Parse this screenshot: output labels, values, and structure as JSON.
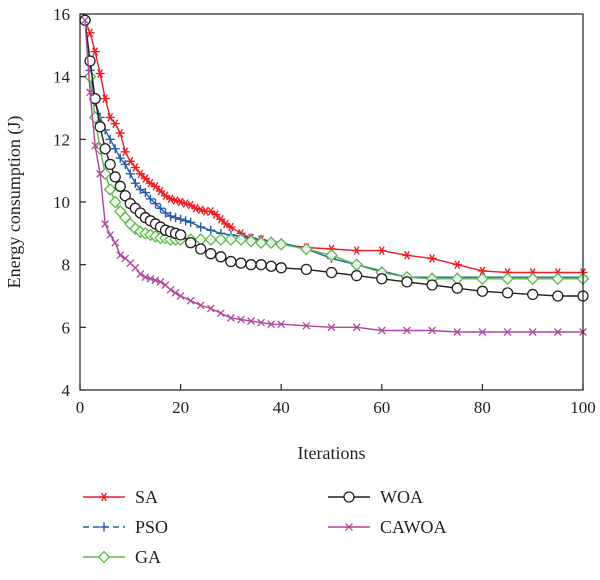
{
  "chart_data": {
    "type": "line",
    "xlabel": "Iterations",
    "ylabel": "Energy consumption (J)",
    "xlim": [
      0,
      100
    ],
    "ylim": [
      4,
      16
    ],
    "xticks": [
      "0",
      "20",
      "40",
      "60",
      "80",
      "100"
    ],
    "yticks": [
      "4",
      "6",
      "8",
      "10",
      "12",
      "14",
      "16"
    ],
    "grid": false,
    "legend_position": "bottom",
    "series": [
      {
        "name": "SA",
        "color": "#ee1c25",
        "marker": "asterisk",
        "x": [
          1,
          2,
          3,
          4,
          5,
          6,
          7,
          8,
          9,
          10,
          11,
          12,
          13,
          14,
          15,
          16,
          17,
          18,
          19,
          20,
          21,
          22,
          23,
          24,
          25,
          26,
          27,
          28,
          29,
          30,
          32,
          34,
          36,
          38,
          40,
          45,
          50,
          55,
          60,
          65,
          70,
          75,
          80,
          85,
          90,
          95,
          100
        ],
        "values": [
          15.8,
          15.4,
          14.8,
          14.1,
          13.3,
          12.7,
          12.5,
          12.2,
          11.6,
          11.3,
          11.1,
          10.9,
          10.75,
          10.6,
          10.5,
          10.35,
          10.2,
          10.1,
          10.05,
          10.0,
          9.95,
          9.9,
          9.8,
          9.75,
          9.7,
          9.7,
          9.6,
          9.45,
          9.3,
          9.2,
          9.0,
          8.85,
          8.8,
          8.7,
          8.65,
          8.55,
          8.5,
          8.45,
          8.45,
          8.3,
          8.2,
          8.0,
          7.8,
          7.75,
          7.75,
          7.75,
          7.75
        ]
      },
      {
        "name": "PSO",
        "color": "#2a5caa",
        "marker": "plus",
        "x": [
          1,
          2,
          3,
          4,
          5,
          6,
          7,
          8,
          9,
          10,
          11,
          12,
          13,
          14,
          15,
          16,
          17,
          18,
          19,
          20,
          21,
          22,
          24,
          26,
          28,
          30,
          32,
          34,
          36,
          38,
          40,
          45,
          50,
          55,
          60,
          65,
          70,
          75,
          80,
          85,
          90,
          95,
          100
        ],
        "values": [
          15.8,
          14.2,
          13.2,
          12.7,
          12.3,
          12.0,
          11.7,
          11.4,
          11.2,
          10.9,
          10.6,
          10.4,
          10.3,
          10.1,
          9.95,
          9.8,
          9.65,
          9.55,
          9.5,
          9.45,
          9.4,
          9.35,
          9.2,
          9.1,
          9.0,
          8.95,
          8.9,
          8.85,
          8.8,
          8.75,
          8.7,
          8.5,
          8.2,
          8.0,
          7.8,
          7.6,
          7.6,
          7.6,
          7.6,
          7.6,
          7.6,
          7.6,
          7.6
        ]
      },
      {
        "name": "GA",
        "color": "#5aba47",
        "marker": "diamond",
        "x": [
          1,
          2,
          3,
          4,
          5,
          6,
          7,
          8,
          9,
          10,
          11,
          12,
          13,
          14,
          15,
          16,
          17,
          18,
          19,
          20,
          22,
          24,
          26,
          28,
          30,
          32,
          34,
          36,
          38,
          40,
          45,
          50,
          55,
          60,
          65,
          70,
          75,
          80,
          85,
          90,
          95,
          100
        ],
        "values": [
          15.8,
          14.0,
          12.7,
          11.7,
          10.9,
          10.4,
          10.0,
          9.7,
          9.5,
          9.3,
          9.15,
          9.05,
          9.0,
          8.95,
          8.9,
          8.85,
          8.85,
          8.8,
          8.8,
          8.8,
          8.8,
          8.8,
          8.8,
          8.8,
          8.8,
          8.8,
          8.75,
          8.7,
          8.7,
          8.65,
          8.5,
          8.3,
          8.0,
          7.75,
          7.6,
          7.55,
          7.55,
          7.55,
          7.55,
          7.55,
          7.55,
          7.55
        ]
      },
      {
        "name": "WOA",
        "color": "#231f20",
        "marker": "circle",
        "x": [
          1,
          2,
          3,
          4,
          5,
          6,
          7,
          8,
          9,
          10,
          11,
          12,
          13,
          14,
          15,
          16,
          17,
          18,
          19,
          20,
          22,
          24,
          26,
          28,
          30,
          32,
          34,
          36,
          38,
          40,
          45,
          50,
          55,
          60,
          65,
          70,
          75,
          80,
          85,
          90,
          95,
          100
        ],
        "values": [
          15.8,
          14.5,
          13.3,
          12.4,
          11.7,
          11.2,
          10.8,
          10.5,
          10.2,
          9.95,
          9.8,
          9.65,
          9.5,
          9.4,
          9.3,
          9.2,
          9.1,
          9.05,
          9.0,
          8.95,
          8.7,
          8.5,
          8.35,
          8.25,
          8.1,
          8.05,
          8.0,
          8.0,
          7.95,
          7.9,
          7.85,
          7.75,
          7.65,
          7.55,
          7.45,
          7.35,
          7.25,
          7.15,
          7.1,
          7.05,
          7.0,
          7.0
        ]
      },
      {
        "name": "CAWOA",
        "color": "#b0469b",
        "marker": "cross",
        "x": [
          1,
          2,
          3,
          4,
          5,
          6,
          7,
          8,
          9,
          10,
          11,
          12,
          13,
          14,
          15,
          16,
          17,
          18,
          19,
          20,
          22,
          24,
          26,
          28,
          30,
          32,
          34,
          36,
          38,
          40,
          45,
          50,
          55,
          60,
          65,
          70,
          75,
          80,
          85,
          90,
          95,
          100
        ],
        "values": [
          15.8,
          13.5,
          11.8,
          10.9,
          9.3,
          8.95,
          8.7,
          8.3,
          8.2,
          8.05,
          7.9,
          7.7,
          7.6,
          7.55,
          7.5,
          7.45,
          7.35,
          7.2,
          7.1,
          7.0,
          6.85,
          6.7,
          6.6,
          6.45,
          6.3,
          6.25,
          6.2,
          6.15,
          6.1,
          6.1,
          6.05,
          6.0,
          6.0,
          5.9,
          5.9,
          5.9,
          5.85,
          5.85,
          5.85,
          5.85,
          5.85,
          5.85
        ]
      }
    ]
  }
}
